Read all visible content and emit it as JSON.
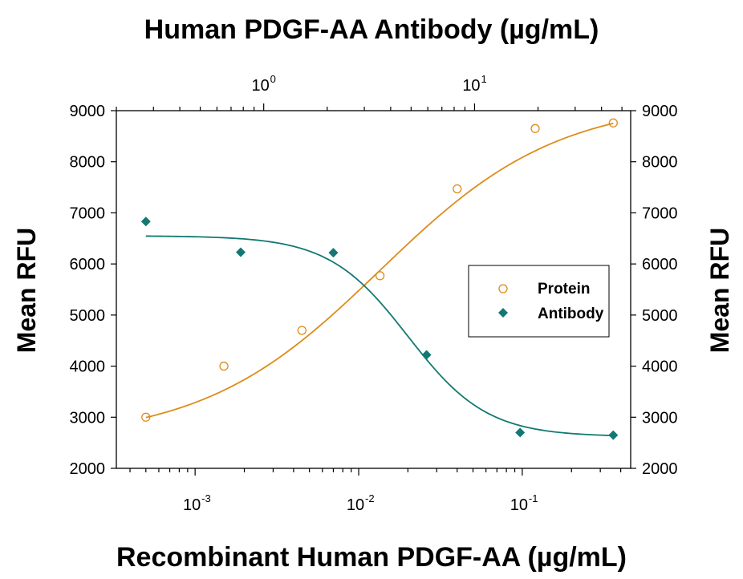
{
  "chart_data": {
    "type": "scatter",
    "title_top": "Human PDGF-AA Antibody (µg/mL)",
    "xlabel": "Recombinant Human PDGF-AA (µg/mL)",
    "ylabel_left": "Mean RFU",
    "ylabel_right": "Mean RFU",
    "ylim": [
      2000,
      9000
    ],
    "y_ticks": [
      "2000",
      "3000",
      "4000",
      "5000",
      "6000",
      "7000",
      "8000",
      "9000"
    ],
    "x_bottom": {
      "scale": "log",
      "range": [
        0.00033,
        0.46
      ],
      "ticks": [
        {
          "base": "10",
          "exp": "-3",
          "value": 0.001
        },
        {
          "base": "10",
          "exp": "-2",
          "value": 0.01
        },
        {
          "base": "10",
          "exp": "-1",
          "value": 0.1
        }
      ]
    },
    "x_top": {
      "scale": "log",
      "range": [
        0.2,
        55
      ],
      "ticks": [
        {
          "base": "10",
          "exp": "0",
          "value": 1
        },
        {
          "base": "10",
          "exp": "1",
          "value": 10
        }
      ]
    },
    "legend": {
      "position": "right",
      "entries": [
        "Protein",
        "Antibody"
      ]
    },
    "series": [
      {
        "name": "Protein",
        "axis": "bottom",
        "marker": "open-circle",
        "color": "#dd8c1a",
        "x": [
          0.0005,
          0.0015,
          0.0045,
          0.0135,
          0.04,
          0.12,
          0.36
        ],
        "y": [
          3000,
          4000,
          4700,
          5770,
          7470,
          8650,
          8760
        ],
        "fit": {
          "bottom": 2550,
          "top": 9200,
          "ec50": 0.0135,
          "hill": 0.8
        }
      },
      {
        "name": "Antibody",
        "axis": "bottom",
        "marker": "filled-diamond",
        "color": "#137873",
        "x": [
          0.0005,
          0.0019,
          0.007,
          0.026,
          0.097,
          0.36
        ],
        "y": [
          6830,
          6230,
          6220,
          4220,
          2700,
          2650
        ],
        "fit": {
          "bottom": 2620,
          "top": 6550,
          "ec50": 0.02,
          "hill": -1.8
        }
      }
    ]
  }
}
